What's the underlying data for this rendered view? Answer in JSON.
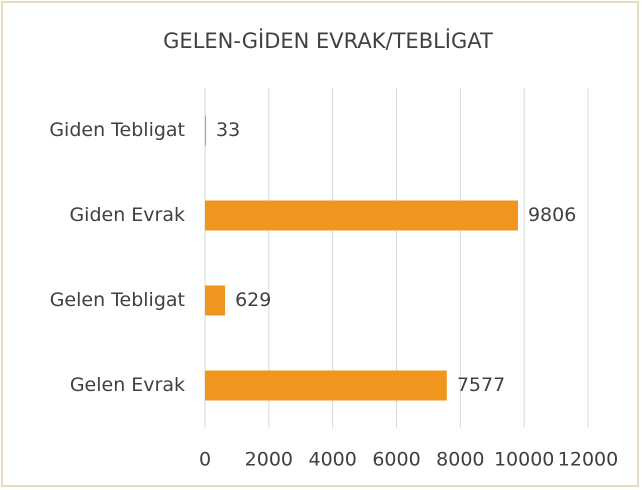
{
  "chart_data": {
    "type": "bar",
    "orientation": "horizontal",
    "title": "GELEN-GİDEN EVRAK/TEBLİGAT",
    "categories": [
      "Giden Tebligat",
      "Giden Evrak",
      "Gelen Tebligat",
      "Gelen Evrak"
    ],
    "values": [
      33,
      9806,
      629,
      7577
    ],
    "color": "#f0961e",
    "xlim": [
      0,
      12000
    ],
    "xticks": [
      0,
      2000,
      4000,
      6000,
      8000,
      10000,
      12000
    ],
    "grid": true
  }
}
